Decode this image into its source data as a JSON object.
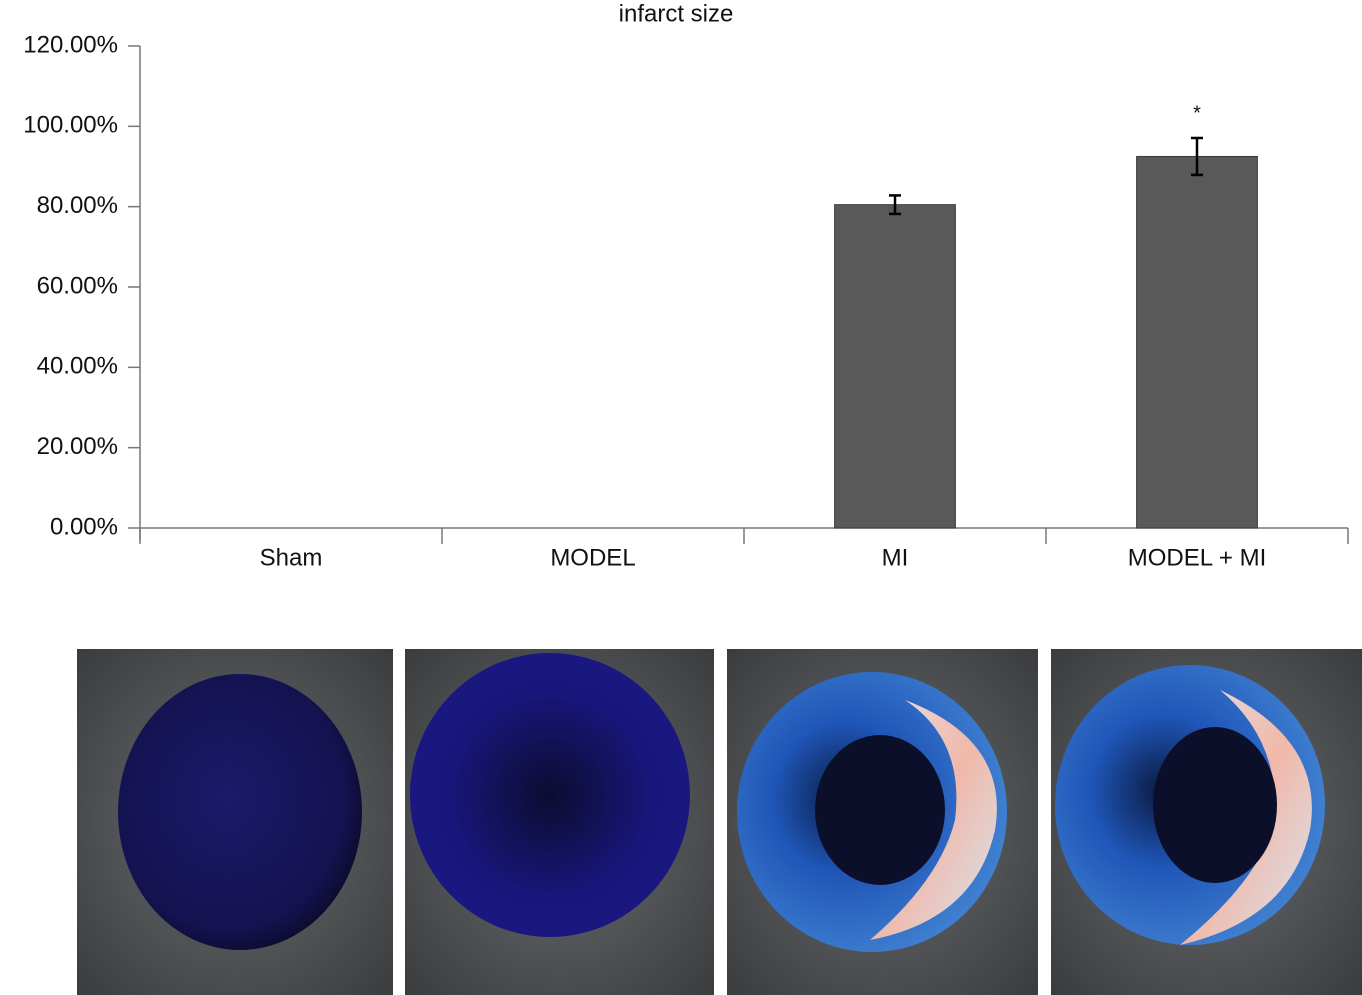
{
  "chart_data": {
    "type": "bar",
    "title": "infarct size",
    "categories": [
      "Sham",
      "MODEL",
      "MI",
      "MODEL + MI"
    ],
    "values": [
      0,
      0,
      80.5,
      92.5
    ],
    "errors": [
      null,
      null,
      2.3,
      4.6
    ],
    "significance": [
      null,
      null,
      null,
      "*"
    ],
    "color": "#595959",
    "ylim": [
      0,
      120
    ],
    "yticks": [
      {
        "value": 0,
        "label": "0.00%"
      },
      {
        "value": 20,
        "label": "20.00%"
      },
      {
        "value": 40,
        "label": "40.00%"
      },
      {
        "value": 60,
        "label": "60.00%"
      },
      {
        "value": 80,
        "label": "80.00%"
      },
      {
        "value": 100,
        "label": "100.00%"
      },
      {
        "value": 120,
        "label": "120.00%"
      }
    ],
    "grid": false
  }
}
